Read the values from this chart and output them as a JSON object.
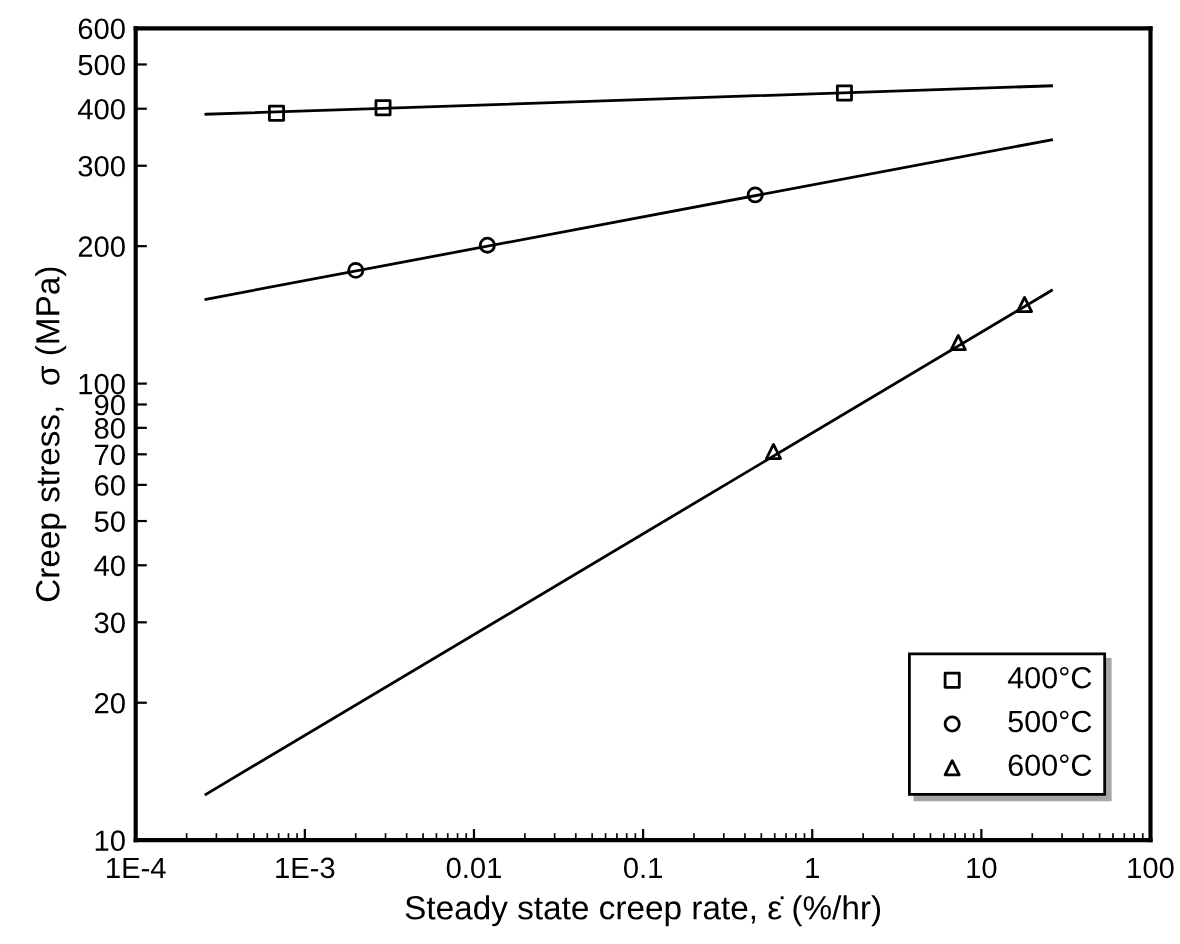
{
  "chart_data": {
    "type": "scatter",
    "xlabel": "Steady state creep rate, ε̇ (%/hr)",
    "ylabel": "Creep stress,  σ (MPa)",
    "log": "xy",
    "grid": false,
    "legend": "bottom right",
    "xlim": [
      0.0001,
      100
    ],
    "ylim": [
      10,
      600
    ],
    "xticks": [
      {
        "value": 0.0001,
        "label": "1E-4"
      },
      {
        "value": 0.001,
        "label": "1E-3"
      },
      0.01,
      0.1,
      1,
      10,
      100
    ],
    "yticks": [
      10,
      20,
      30,
      40,
      50,
      60,
      70,
      80,
      90,
      100,
      200,
      300,
      400,
      500,
      600
    ],
    "series": [
      {
        "name": "400°C",
        "marker": "square",
        "color": "#000000",
        "x": [
          0.00068,
          0.0029,
          1.55
        ],
        "values": [
          391,
          402,
          433
        ]
      },
      {
        "name": "500°C",
        "marker": "circle",
        "color": "#000000",
        "x": [
          0.002,
          0.012,
          0.46
        ],
        "values": [
          177,
          201,
          259
        ]
      },
      {
        "name": "600°C",
        "marker": "triangle",
        "color": "#000000",
        "x": [
          0.59,
          7.3,
          18
        ],
        "values": [
          71,
          123,
          149
        ]
      },
      {
        "type": "line",
        "marker": "none",
        "line_style": "solid",
        "color": "#000000",
        "x": [
          0.00026,
          26
        ],
        "values": [
          389,
          449
        ]
      },
      {
        "type": "line",
        "marker": "none",
        "line_style": "solid",
        "color": "#000000",
        "x": [
          0.00026,
          26
        ],
        "values": [
          153,
          342
        ]
      },
      {
        "type": "line",
        "marker": "none",
        "line_style": "solid",
        "color": "#000000",
        "x": [
          0.00026,
          26
        ],
        "values": [
          12.6,
          160
        ]
      }
    ]
  }
}
